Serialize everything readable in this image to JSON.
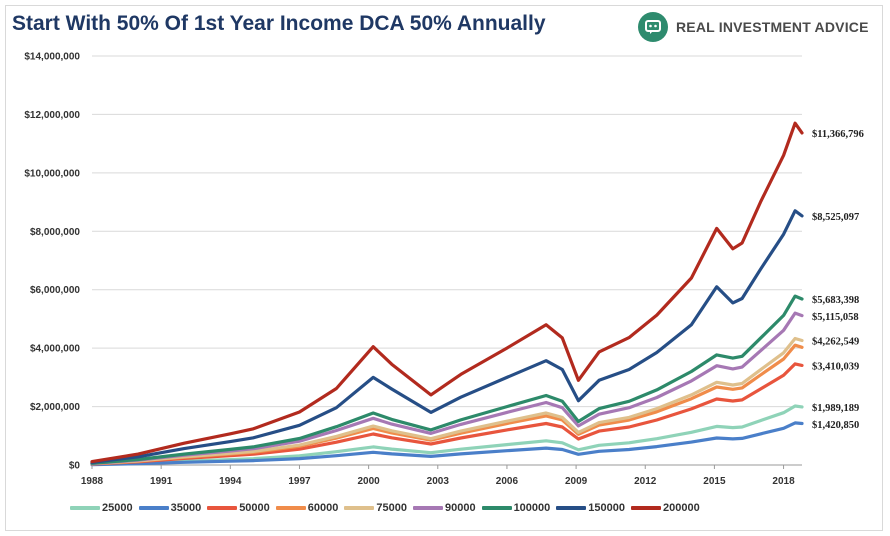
{
  "header": {
    "title": "Start With 50% Of 1st Year Income DCA 50% Annually",
    "brand": "REAL INVESTMENT ADVICE",
    "brand_color": "#2e8b6e"
  },
  "chart_data": {
    "type": "line",
    "title": "Start With 50% Of 1st Year Income DCA 50% Annually",
    "xlabel": "",
    "ylabel": "",
    "xlim": [
      1988,
      2018.8
    ],
    "ylim": [
      0,
      14000000
    ],
    "y_ticks": [
      "$0",
      "$2,000,000",
      "$4,000,000",
      "$6,000,000",
      "$8,000,000",
      "$10,000,000",
      "$12,000,000",
      "$14,000,000"
    ],
    "x_ticks": [
      "1988",
      "1991",
      "1994",
      "1997",
      "2000",
      "2003",
      "2006",
      "2009",
      "2012",
      "2015",
      "2018"
    ],
    "grid": true,
    "legend": "bottom",
    "x": [
      1988,
      1990,
      1992,
      1994,
      1995,
      1997,
      1998.6,
      2000.2,
      2001,
      2002.7,
      2004,
      2006,
      2007.7,
      2008.4,
      2009.1,
      2010,
      2011.3,
      2012.5,
      2014,
      2015.1,
      2015.8,
      2016.2,
      2017,
      2018,
      2018.5,
      2018.8
    ],
    "series": [
      {
        "name": "25000",
        "color": "#8fd3b8",
        "end_label": "$1,989,189",
        "values": [
          20000,
          65000,
          130000,
          185000,
          215000,
          315000,
          455000,
          620000,
          545000,
          420000,
          540000,
          700000,
          830000,
          760000,
          520000,
          675000,
          760000,
          900000,
          1120000,
          1320000,
          1280000,
          1300000,
          1520000,
          1790000,
          2020000,
          1990000
        ]
      },
      {
        "name": "35000",
        "color": "#4a7fc9",
        "end_label": "$1,420,850",
        "values": [
          14000,
          46000,
          91000,
          130000,
          150000,
          220000,
          320000,
          435000,
          380000,
          295000,
          380000,
          490000,
          580000,
          530000,
          365000,
          470000,
          530000,
          630000,
          785000,
          925000,
          895000,
          910000,
          1065000,
          1255000,
          1440000,
          1420000
        ]
      },
      {
        "name": "50000",
        "color": "#e8553d",
        "end_label": "$3,410,039",
        "values": [
          35000,
          110000,
          225000,
          320000,
          370000,
          540000,
          780000,
          1060000,
          930000,
          720000,
          925000,
          1200000,
          1420000,
          1300000,
          890000,
          1160000,
          1300000,
          1540000,
          1920000,
          2260000,
          2190000,
          2230000,
          2600000,
          3070000,
          3460000,
          3410000
        ]
      },
      {
        "name": "60000",
        "color": "#f08c4a",
        "end_label": "",
        "values": [
          42000,
          130000,
          265000,
          375000,
          435000,
          640000,
          920000,
          1250000,
          1100000,
          850000,
          1090000,
          1420000,
          1680000,
          1540000,
          1050000,
          1370000,
          1540000,
          1820000,
          2270000,
          2670000,
          2590000,
          2640000,
          3080000,
          3630000,
          4100000,
          4030000
        ]
      },
      {
        "name": "75000",
        "color": "#dfc08c",
        "end_label": "$4,262,549",
        "values": [
          44000,
          140000,
          280000,
          400000,
          465000,
          680000,
          980000,
          1330000,
          1170000,
          900000,
          1160000,
          1500000,
          1780000,
          1630000,
          1115000,
          1450000,
          1630000,
          1930000,
          2400000,
          2830000,
          2740000,
          2790000,
          3260000,
          3840000,
          4330000,
          4262549
        ]
      },
      {
        "name": "90000",
        "color": "#a678b4",
        "end_label": "$5,115,058",
        "values": [
          53000,
          168000,
          336000,
          480000,
          558000,
          816000,
          1180000,
          1600000,
          1400000,
          1080000,
          1390000,
          1800000,
          2140000,
          1960000,
          1340000,
          1740000,
          1960000,
          2310000,
          2880000,
          3400000,
          3290000,
          3350000,
          3910000,
          4610000,
          5200000,
          5115058
        ]
      },
      {
        "name": "100000",
        "color": "#2d8a6a",
        "end_label": "$5,683,398",
        "values": [
          59000,
          187000,
          374000,
          533000,
          620000,
          907000,
          1310000,
          1780000,
          1560000,
          1200000,
          1545000,
          2000000,
          2380000,
          2180000,
          1490000,
          1930000,
          2180000,
          2570000,
          3200000,
          3770000,
          3660000,
          3720000,
          4340000,
          5120000,
          5780000,
          5683398
        ]
      },
      {
        "name": "150000",
        "color": "#264e86",
        "end_label": "$8,525,097",
        "values": [
          88000,
          280000,
          560000,
          800000,
          930000,
          1360000,
          1960000,
          3000000,
          2600000,
          1800000,
          2320000,
          3000000,
          3570000,
          3270000,
          2200000,
          2900000,
          3270000,
          3850000,
          4800000,
          6100000,
          5550000,
          5700000,
          6700000,
          7900000,
          8700000,
          8525097
        ]
      },
      {
        "name": "200000",
        "color": "#b22a1e",
        "end_label": "$11,366,796",
        "values": [
          118000,
          373000,
          747000,
          1067000,
          1240000,
          1813000,
          2620000,
          4050000,
          3450000,
          2400000,
          3100000,
          4000000,
          4800000,
          4350000,
          2900000,
          3870000,
          4360000,
          5130000,
          6400000,
          8100000,
          7400000,
          7600000,
          9000000,
          10600000,
          11700000,
          11366796
        ]
      }
    ]
  }
}
